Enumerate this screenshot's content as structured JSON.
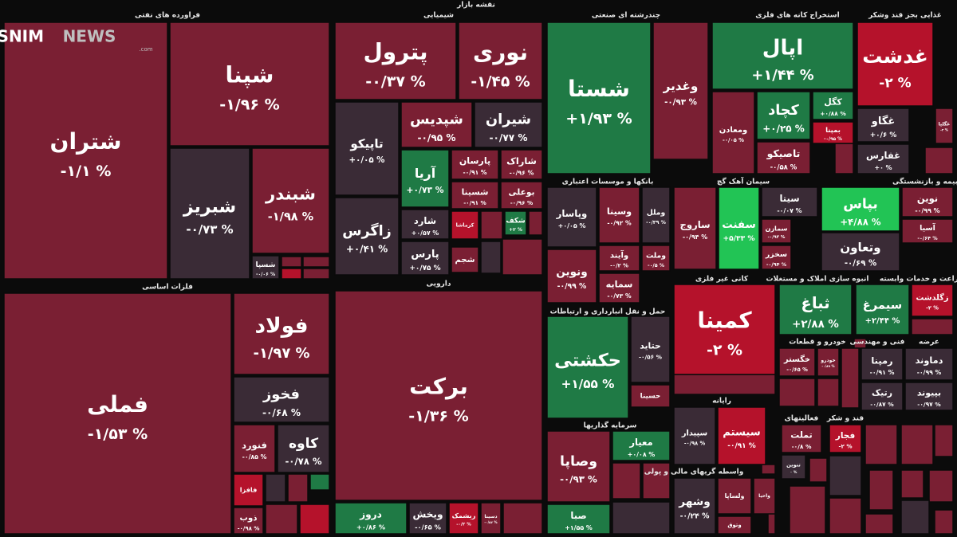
{
  "header": {
    "title": "نقشه بازار",
    "logo": "TASNIM",
    "logo_news": "NEWS",
    "logo_domain": ".com"
  },
  "sectors": [
    {
      "label": "فراورده های نفتی",
      "tiles": [
        {
          "name": "شتران",
          "change": "-۱/۱ %"
        },
        {
          "name": "شپنا",
          "change": "-۱/۹۶ %"
        },
        {
          "name": "شبریز",
          "change": "-۰/۷۳ %"
        },
        {
          "name": "شبندر",
          "change": "-۱/۹۸ %"
        },
        {
          "name": "شسپا",
          "change": "-۰/۰۶ %"
        }
      ]
    },
    {
      "label": "شیمیایی",
      "tiles": [
        {
          "name": "پترول",
          "change": "-۰/۳۷ %"
        },
        {
          "name": "نوری",
          "change": "-۱/۴۵ %"
        },
        {
          "name": "تاپیکو",
          "change": "+۰/۰۵ %"
        },
        {
          "name": "زاگرس",
          "change": "+۰/۴۱ %"
        },
        {
          "name": "شپدیس",
          "change": "-۰/۹۵ %"
        },
        {
          "name": "شیران",
          "change": "-۰/۷۷ %"
        },
        {
          "name": "آریا",
          "change": "+۰/۷۳ %"
        },
        {
          "name": "پارسان",
          "change": "-۰/۹۱ %"
        },
        {
          "name": "شاراک",
          "change": "-۰/۹۶ %"
        },
        {
          "name": "شسینا",
          "change": "-۰/۹۱ %"
        },
        {
          "name": "بوعلی",
          "change": "-۰/۹۶ %"
        },
        {
          "name": "شارد",
          "change": "+۰/۵۷ %"
        },
        {
          "name": "پارس",
          "change": "+۰/۷۵ %"
        },
        {
          "name": "کرماشا"
        },
        {
          "name": "شکف",
          "change": "+۲ %"
        },
        {
          "name": "شجم"
        }
      ]
    },
    {
      "label": "چندرشته ای صنعتی",
      "tiles": [
        {
          "name": "شستا",
          "change": "+۱/۹۳ %"
        },
        {
          "name": "وغدیر",
          "change": "-۰/۹۳ %"
        }
      ]
    },
    {
      "label": "استخراج کانه های فلزی",
      "tiles": [
        {
          "name": "اپال",
          "change": "+۱/۴۴ %"
        },
        {
          "name": "ومعادن",
          "change": "-۰/۰۵ %"
        },
        {
          "name": "کچاد",
          "change": "+۰/۲۵ %"
        },
        {
          "name": "کگل",
          "change": "+۰/۸۸ %"
        },
        {
          "name": "بمپنا",
          "change": "-۰/۹۵ %"
        },
        {
          "name": "تاصیکو",
          "change": "-۰/۵۸ %"
        }
      ]
    },
    {
      "label": "غذایی بجز قند وشکر",
      "tiles": [
        {
          "name": "غدشت",
          "change": "-۲ %"
        },
        {
          "name": "غگاو",
          "change": "+۰/۶ %"
        },
        {
          "name": "غگلپا",
          "change": "-۲ %"
        },
        {
          "name": "غفارس",
          "change": "+۰ %"
        }
      ]
    },
    {
      "label": "بانکها و موسسات اعتباری",
      "tiles": [
        {
          "name": "وپاسار",
          "change": "+۰/۰۵ %"
        },
        {
          "name": "وسینا",
          "change": "-۰/۹۲ %"
        },
        {
          "name": "وملل",
          "change": "-۰/۳۹ %"
        },
        {
          "name": "ونوین",
          "change": "-۰/۹۹ %"
        },
        {
          "name": "وآیند",
          "change": "-۰/۲ %"
        },
        {
          "name": "وملت",
          "change": "-۰/۵ %"
        },
        {
          "name": "سمایه",
          "change": "-۰/۷۳ %"
        }
      ]
    },
    {
      "label": "سیمان آهک گچ",
      "tiles": [
        {
          "name": "ساروج",
          "change": "-۰/۹۴ %"
        },
        {
          "name": "سفنت",
          "change": "+۵/۳۳ %"
        },
        {
          "name": "سیتا",
          "change": "-۰/۰۷ %"
        },
        {
          "name": "سمازن",
          "change": "-۰/۹۳ %"
        },
        {
          "name": "سخزر",
          "change": "-۰/۹۴ %"
        }
      ]
    },
    {
      "label": "بیمه و بازنشستگی",
      "tiles": [
        {
          "name": "بپاس",
          "change": "+۴/۸۸ %"
        },
        {
          "name": "وتعاون",
          "change": "-۰/۶۹ %"
        },
        {
          "name": "نوین",
          "change": "-۰/۹۹ %"
        },
        {
          "name": "آسیا",
          "change": "-۰/۶۴ %"
        }
      ]
    },
    {
      "label": "فلزات اساسی",
      "tiles": [
        {
          "name": "فملی",
          "change": "-۱/۵۳ %"
        },
        {
          "name": "فولاد",
          "change": "-۱/۹۷ %"
        },
        {
          "name": "فخوز",
          "change": "-۰/۶۸ %"
        },
        {
          "name": "فنورد",
          "change": "-۰/۸۵ %"
        },
        {
          "name": "کاوه",
          "change": "-۰/۷۸ %"
        },
        {
          "name": "فافزا"
        },
        {
          "name": "ذوب",
          "change": "-۰/۹۸ %"
        }
      ]
    },
    {
      "label": "دارویی",
      "tiles": [
        {
          "name": "برکت",
          "change": "-۱/۳۶ %"
        },
        {
          "name": "دروز",
          "change": "+۰/۸۶ %"
        },
        {
          "name": "ویخش",
          "change": "-۰/۶۵ %"
        },
        {
          "name": "ریشمک",
          "change": "-۰/۲ %"
        },
        {
          "name": "دسینا",
          "change": "-۰/۵۶ %"
        }
      ]
    },
    {
      "label": "حمل و نقل انبارداری و ارتباطات",
      "tiles": [
        {
          "name": "حکشتی",
          "change": "+۱/۵۵ %"
        },
        {
          "name": "حتاید",
          "change": "-۰/۵۶ %"
        },
        {
          "name": "حسینا"
        }
      ]
    },
    {
      "label": "سرمایه گذاریها",
      "tiles": [
        {
          "name": "وصاپا",
          "change": "-۰/۹۳ %"
        },
        {
          "name": "معیار",
          "change": "+۰/۰۸ %"
        },
        {
          "name": "صبا",
          "change": "+۱/۵۵ %"
        }
      ]
    },
    {
      "label": "کانی غیر فلزی",
      "tiles": [
        {
          "name": "کمینا",
          "change": "-۲ %"
        }
      ]
    },
    {
      "label": "انبوه سازی املاک و مستغلات",
      "tiles": [
        {
          "name": "ثباغ",
          "change": "+۲/۸۸ %"
        }
      ]
    },
    {
      "label": "زراعت و خدمات وابسته",
      "tiles": [
        {
          "name": "سیمرغ",
          "change": "+۲/۴۴ %"
        },
        {
          "name": "زگلدشت",
          "change": "-۲ %"
        }
      ]
    },
    {
      "label": "خودرو و قطعات",
      "tiles": [
        {
          "name": "خگستر",
          "change": "-۰/۶۵ %"
        },
        {
          "name": "خودرو",
          "change": "-۰/۸۹ %"
        }
      ]
    },
    {
      "label": "فنی و مهندسی",
      "tiles": [
        {
          "name": "رمپنا",
          "change": "-۰/۹۱ %"
        },
        {
          "name": "رتیک",
          "change": "-۰/۸۷ %"
        }
      ]
    },
    {
      "label": "عرضه",
      "tiles": [
        {
          "name": "دماوند",
          "change": "-۰/۹۹ %"
        },
        {
          "name": "بپیوند",
          "change": "-۰/۹۷ %"
        }
      ]
    },
    {
      "label": "رایانه",
      "tiles": [
        {
          "name": "سپیدار",
          "change": "-۰/۹۸ %"
        },
        {
          "name": "سیستم",
          "change": "-۰/۹۱ %"
        }
      ]
    },
    {
      "label": "واسطه گریهای مالی و پولی",
      "tiles": [
        {
          "name": "وشهر",
          "change": "-۰/۲۴ %"
        },
        {
          "name": "ولساپا"
        },
        {
          "name": "واحیا"
        },
        {
          "name": "وتوق"
        }
      ]
    },
    {
      "label": "فعالیتهای",
      "tiles": [
        {
          "name": "تملت",
          "change": "-۰/۸ %"
        },
        {
          "name": "تنوین",
          "change": "۰ %"
        }
      ]
    },
    {
      "label": "قند و شکر",
      "tiles": [
        {
          "name": "فجار",
          "change": "-۲ %"
        }
      ]
    }
  ]
}
